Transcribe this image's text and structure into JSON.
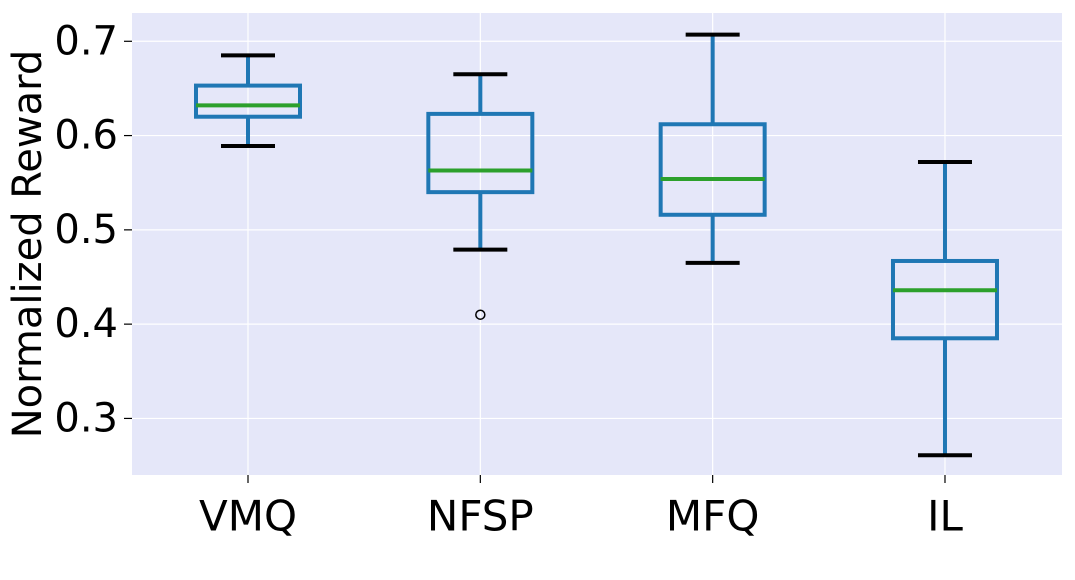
{
  "chart_data": {
    "type": "box",
    "ylabel": "Normalized Reward",
    "categories": [
      "VMQ",
      "NFSP",
      "MFQ",
      "IL"
    ],
    "ylim": [
      0.24,
      0.73
    ],
    "yticks": [
      {
        "value": 0.3,
        "label": "0.3"
      },
      {
        "value": 0.4,
        "label": "0.4"
      },
      {
        "value": 0.5,
        "label": "0.5"
      },
      {
        "value": 0.6,
        "label": "0.6"
      },
      {
        "value": 0.7,
        "label": "0.7"
      }
    ],
    "grid": true,
    "boxes": [
      {
        "category": "VMQ",
        "whisker_low": 0.589,
        "q1": 0.62,
        "median": 0.632,
        "q3": 0.653,
        "whisker_high": 0.685,
        "outliers": []
      },
      {
        "category": "NFSP",
        "whisker_low": 0.479,
        "q1": 0.54,
        "median": 0.563,
        "q3": 0.623,
        "whisker_high": 0.665,
        "outliers": [
          0.41
        ]
      },
      {
        "category": "MFQ",
        "whisker_low": 0.465,
        "q1": 0.516,
        "median": 0.554,
        "q3": 0.612,
        "whisker_high": 0.707,
        "outliers": []
      },
      {
        "category": "IL",
        "whisker_low": 0.261,
        "q1": 0.385,
        "median": 0.436,
        "q3": 0.467,
        "whisker_high": 0.572,
        "outliers": []
      }
    ],
    "colors": {
      "background": "#e5e7f9",
      "grid": "#ffffff",
      "box": "#1f77b4",
      "median": "#2ca02c",
      "cap": "#000000"
    }
  }
}
